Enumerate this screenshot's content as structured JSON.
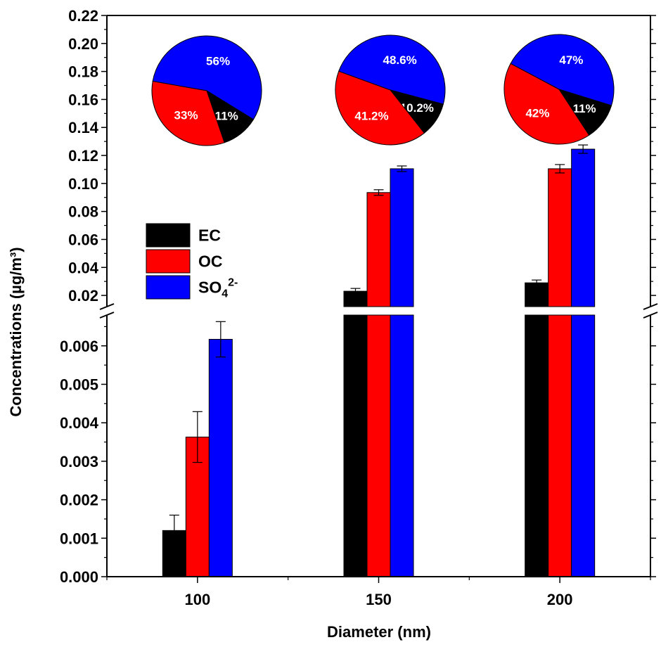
{
  "chart_data": {
    "type": "bar",
    "xlabel": "Diameter (nm)",
    "ylabel": "Concentrations (µg/m³)",
    "categories": [
      "100",
      "150",
      "200"
    ],
    "y_break": {
      "lower_range": [
        0,
        0.0068
      ],
      "upper_range": [
        0.012,
        0.22
      ],
      "lower_ticks": [
        "0.000",
        "0.001",
        "0.002",
        "0.003",
        "0.004",
        "0.005",
        "0.006"
      ],
      "upper_ticks": [
        "0.02",
        "0.04",
        "0.06",
        "0.08",
        "0.10",
        "0.12",
        "0.14",
        "0.16",
        "0.18",
        "0.20",
        "0.22"
      ]
    },
    "series": [
      {
        "name": "EC",
        "color": "#000000",
        "values": [
          0.0012,
          0.023,
          0.029
        ],
        "errors": [
          0.0004,
          0.002,
          0.002
        ]
      },
      {
        "name": "OC",
        "color": "#ff0000",
        "values": [
          0.00363,
          0.0935,
          0.1105
        ],
        "errors": [
          0.00066,
          0.002,
          0.003
        ]
      },
      {
        "name": "SO",
        "name_sub": "4",
        "name_sup": "2-",
        "color": "#0000ff",
        "values": [
          0.00617,
          0.1105,
          0.1245
        ],
        "errors": [
          0.00046,
          0.002,
          0.003
        ]
      }
    ],
    "legend_position": "middle-left",
    "pies": [
      {
        "category": "100",
        "slices": [
          {
            "series": "SO4",
            "value": 56,
            "label": "56%"
          },
          {
            "series": "EC",
            "value": 11,
            "label": "11%"
          },
          {
            "series": "OC",
            "value": 33,
            "label": "33%"
          }
        ]
      },
      {
        "category": "150",
        "slices": [
          {
            "series": "SO4",
            "value": 48.6,
            "label": "48.6%"
          },
          {
            "series": "EC",
            "value": 10.2,
            "label": "10.2%"
          },
          {
            "series": "OC",
            "value": 41.2,
            "label": "41.2%"
          }
        ]
      },
      {
        "category": "200",
        "slices": [
          {
            "series": "SO4",
            "value": 47,
            "label": "47%"
          },
          {
            "series": "EC",
            "value": 11,
            "label": "11%"
          },
          {
            "series": "OC",
            "value": 42,
            "label": "42%"
          }
        ]
      }
    ]
  }
}
